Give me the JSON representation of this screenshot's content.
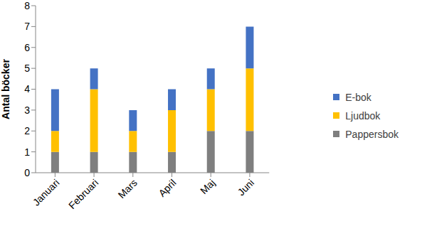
{
  "chart_data": {
    "type": "bar",
    "stacked": true,
    "grid": false,
    "legend": "right",
    "y_label": "Antal böcker",
    "categories": [
      "Januari",
      "Februari",
      "Mars",
      "April",
      "Maj",
      "Juni"
    ],
    "ylim": [
      0,
      8
    ],
    "yticks": [
      0,
      1,
      2,
      3,
      4,
      5,
      6,
      7,
      8
    ],
    "series": [
      {
        "name": "Pappersbok",
        "color": "#7f7f7f",
        "values": [
          1,
          1,
          1,
          1,
          2,
          2
        ]
      },
      {
        "name": "Ljudbok",
        "color": "#ffc000",
        "values": [
          1,
          3,
          1,
          2,
          2,
          3
        ]
      },
      {
        "name": "E-bok",
        "color": "#4472c4",
        "values": [
          2,
          1,
          1,
          1,
          1,
          2
        ]
      }
    ]
  }
}
